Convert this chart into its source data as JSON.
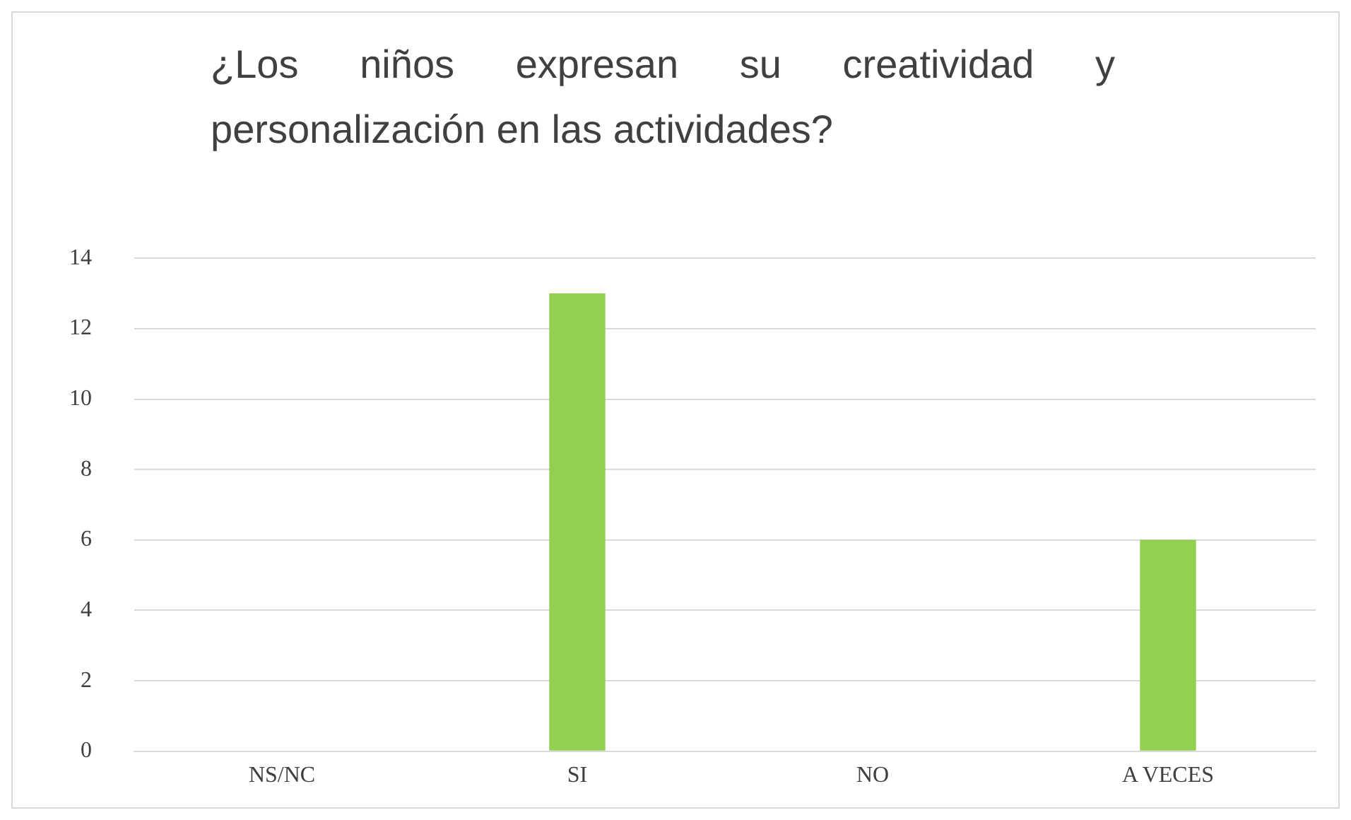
{
  "chart_data": {
    "type": "bar",
    "title": "¿Los niños expresan su creatividad y personalización en las actividades?",
    "categories": [
      "NS/NC",
      "SI",
      "NO",
      "A VECES"
    ],
    "values": [
      0,
      13,
      0,
      6
    ],
    "color": "#92d050",
    "ylim": [
      0,
      14
    ],
    "yticks": [
      0,
      2,
      4,
      6,
      8,
      10,
      12,
      14
    ],
    "grid": "y",
    "legend": false
  }
}
